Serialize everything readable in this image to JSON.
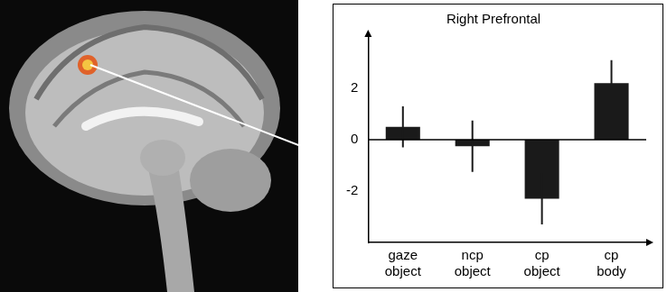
{
  "chart_data": {
    "type": "bar",
    "title": "Right Prefrontal",
    "categories": [
      "gaze object",
      "ncp object",
      "cp object",
      "cp body"
    ],
    "values": [
      0.5,
      -0.25,
      -2.3,
      2.2
    ],
    "errors": [
      0.8,
      1.0,
      1.0,
      0.9
    ],
    "color": "#1a1a1a",
    "ylim": [
      -4,
      4
    ],
    "yticks": [
      -2,
      0,
      2
    ],
    "grid": false
  }
}
